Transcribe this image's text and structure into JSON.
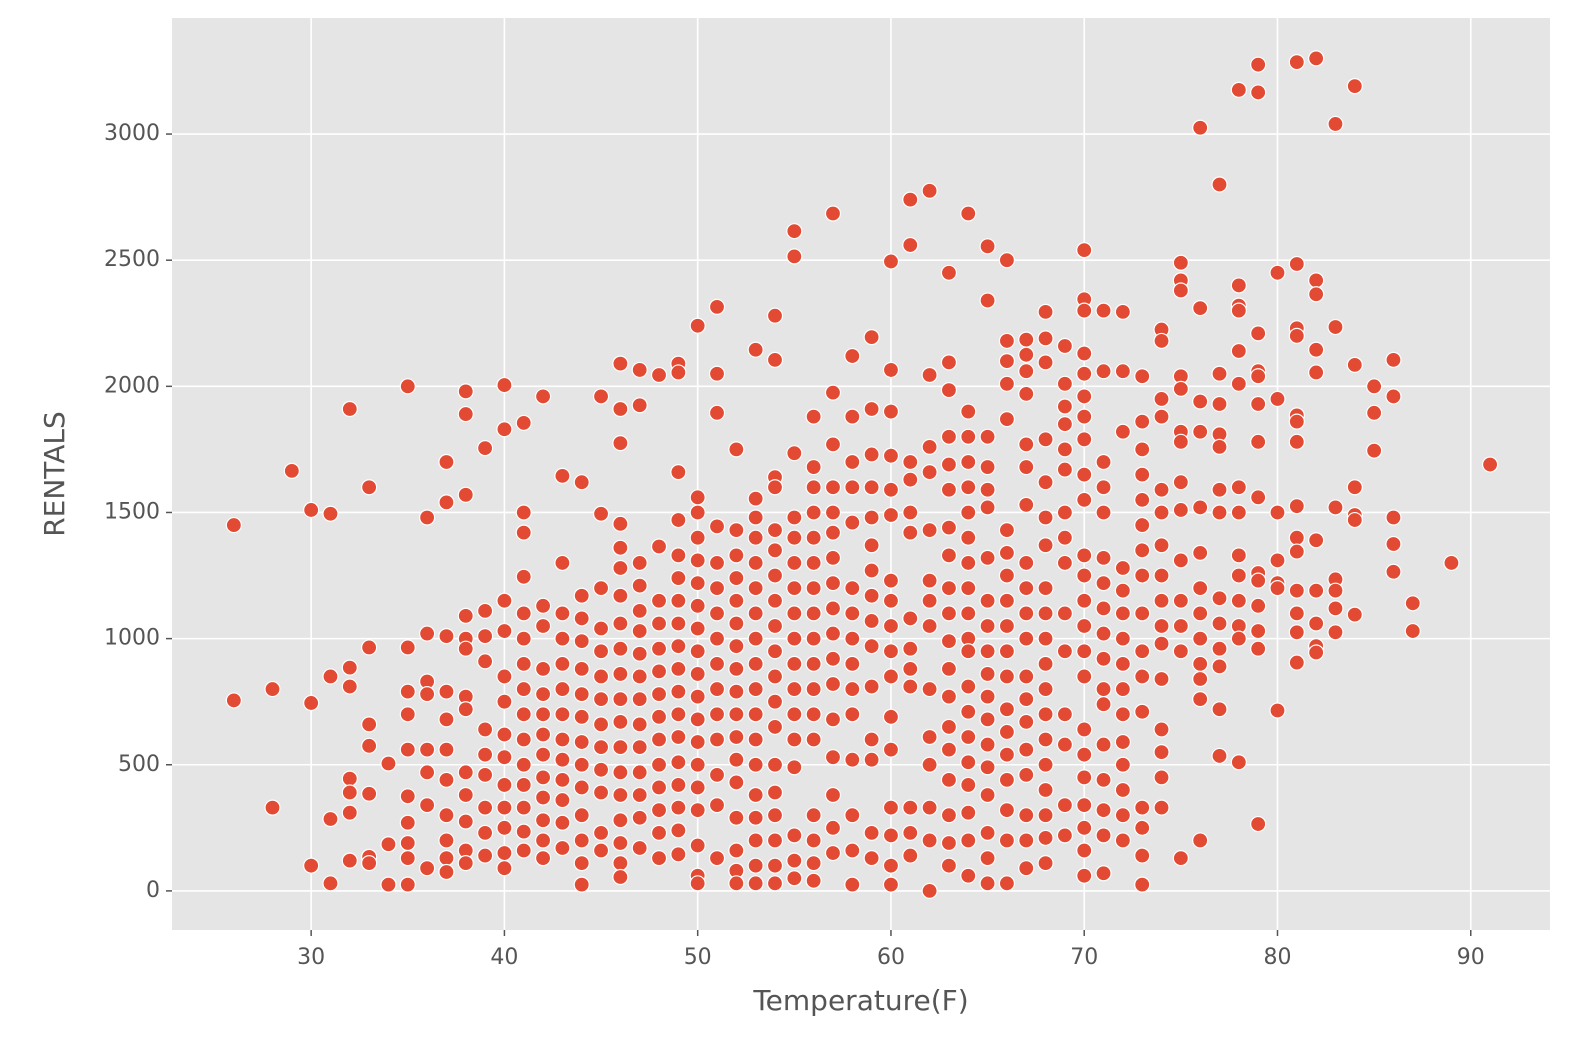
{
  "chart_data": {
    "type": "scatter",
    "x_label": "Temperature(F)",
    "y_label": "RENTALS",
    "color": "#e24a33",
    "grid": true,
    "xlim": [
      22.8,
      94.1
    ],
    "ylim": [
      -155,
      3460
    ],
    "xticks": [
      30,
      40,
      50,
      60,
      70,
      80,
      90
    ],
    "yticks": [
      0,
      500,
      1000,
      1500,
      2000,
      2500,
      3000
    ],
    "x": [
      26,
      26,
      28,
      28,
      29,
      30,
      30,
      30,
      31,
      31,
      31,
      31,
      32,
      32,
      32,
      32,
      32,
      32,
      32,
      33,
      33,
      33,
      33,
      33,
      33,
      33,
      34,
      34,
      34,
      35,
      35,
      35,
      35,
      35,
      35,
      35,
      35,
      35,
      35,
      36,
      36,
      36,
      36,
      36,
      36,
      36,
      36,
      37,
      37,
      37,
      37,
      37,
      37,
      37,
      37,
      37,
      37,
      37,
      38,
      38,
      38,
      38,
      38,
      38,
      38,
      38,
      38,
      38,
      38,
      38,
      38,
      39,
      39,
      39,
      39,
      39,
      39,
      39,
      39,
      39,
      39,
      40,
      40,
      40,
      40,
      40,
      40,
      40,
      40,
      40,
      40,
      40,
      40,
      40,
      41,
      41,
      41,
      41,
      41,
      41,
      41,
      41,
      41,
      41,
      41,
      41,
      41,
      41,
      41,
      42,
      42,
      42,
      42,
      42,
      42,
      42,
      42,
      42,
      42,
      42,
      42,
      42,
      43,
      43,
      43,
      43,
      43,
      43,
      43,
      43,
      43,
      43,
      43,
      43,
      43,
      44,
      44,
      44,
      44,
      44,
      44,
      44,
      44,
      44,
      44,
      44,
      44,
      44,
      44,
      45,
      45,
      45,
      45,
      45,
      45,
      45,
      45,
      45,
      45,
      45,
      45,
      45,
      46,
      46,
      46,
      46,
      46,
      46,
      46,
      46,
      46,
      46,
      46,
      46,
      46,
      46,
      46,
      46,
      46,
      46,
      46,
      47,
      47,
      47,
      47,
      47,
      47,
      47,
      47,
      47,
      47,
      47,
      47,
      47,
      47,
      47,
      48,
      48,
      48,
      48,
      48,
      48,
      48,
      48,
      48,
      48,
      48,
      48,
      48,
      48,
      49,
      49,
      49,
      49,
      49,
      49,
      49,
      49,
      49,
      49,
      49,
      49,
      49,
      49,
      49,
      49,
      49,
      49,
      50,
      50,
      50,
      50,
      50,
      50,
      50,
      50,
      50,
      50,
      50,
      50,
      50,
      50,
      50,
      50,
      50,
      50,
      50,
      51,
      51,
      51,
      51,
      51,
      51,
      51,
      51,
      51,
      51,
      51,
      51,
      51,
      51,
      51,
      52,
      52,
      52,
      52,
      52,
      52,
      52,
      52,
      52,
      52,
      52,
      52,
      52,
      52,
      52,
      52,
      52,
      53,
      53,
      53,
      53,
      53,
      53,
      53,
      53,
      53,
      53,
      53,
      53,
      53,
      53,
      53,
      53,
      53,
      53,
      54,
      54,
      54,
      54,
      54,
      54,
      54,
      54,
      54,
      54,
      54,
      54,
      54,
      54,
      54,
      54,
      54,
      54,
      54,
      55,
      55,
      55,
      55,
      55,
      55,
      55,
      55,
      55,
      55,
      55,
      55,
      55,
      55,
      55,
      55,
      55,
      56,
      56,
      56,
      56,
      56,
      56,
      56,
      56,
      56,
      56,
      56,
      56,
      56,
      56,
      56,
      56,
      56,
      57,
      57,
      57,
      57,
      57,
      57,
      57,
      57,
      57,
      57,
      57,
      57,
      57,
      57,
      57,
      57,
      57,
      58,
      58,
      58,
      58,
      58,
      58,
      58,
      58,
      58,
      58,
      58,
      58,
      58,
      58,
      58,
      59,
      59,
      59,
      59,
      59,
      59,
      59,
      59,
      59,
      59,
      59,
      59,
      59,
      59,
      59,
      60,
      60,
      60,
      60,
      60,
      60,
      60,
      60,
      60,
      60,
      60,
      60,
      60,
      60,
      60,
      60,
      60,
      61,
      61,
      61,
      61,
      61,
      61,
      61,
      61,
      61,
      61,
      61,
      61,
      61,
      62,
      62,
      62,
      62,
      62,
      62,
      62,
      62,
      62,
      62,
      62,
      62,
      62,
      62,
      63,
      63,
      63,
      63,
      63,
      63,
      63,
      63,
      63,
      63,
      63,
      63,
      63,
      63,
      63,
      63,
      63,
      63,
      63,
      64,
      64,
      64,
      64,
      64,
      64,
      64,
      64,
      64,
      64,
      64,
      64,
      64,
      64,
      64,
      64,
      64,
      64,
      64,
      64,
      65,
      65,
      65,
      65,
      65,
      65,
      65,
      65,
      65,
      65,
      65,
      65,
      65,
      65,
      65,
      65,
      65,
      65,
      65,
      66,
      66,
      66,
      66,
      66,
      66,
      66,
      66,
      66,
      66,
      66,
      66,
      66,
      66,
      66,
      66,
      66,
      66,
      66,
      67,
      67,
      67,
      67,
      67,
      67,
      67,
      67,
      67,
      67,
      67,
      67,
      67,
      67,
      67,
      67,
      67,
      67,
      67,
      68,
      68,
      68,
      68,
      68,
      68,
      68,
      68,
      68,
      68,
      68,
      68,
      68,
      68,
      68,
      68,
      68,
      68,
      68,
      69,
      69,
      69,
      69,
      69,
      69,
      69,
      69,
      69,
      69,
      69,
      69,
      69,
      69,
      69,
      70,
      70,
      70,
      70,
      70,
      70,
      70,
      70,
      70,
      70,
      70,
      70,
      70,
      70,
      70,
      70,
      70,
      70,
      70,
      70,
      70,
      70,
      70,
      71,
      71,
      71,
      71,
      71,
      71,
      71,
      71,
      71,
      71,
      71,
      71,
      71,
      71,
      71,
      71,
      71,
      72,
      72,
      72,
      72,
      72,
      72,
      72,
      72,
      72,
      72,
      72,
      72,
      72,
      72,
      72,
      73,
      73,
      73,
      73,
      73,
      73,
      73,
      73,
      73,
      73,
      73,
      73,
      73,
      73,
      73,
      73,
      74,
      74,
      74,
      74,
      74,
      74,
      74,
      74,
      74,
      74,
      74,
      74,
      74,
      74,
      74,
      74,
      75,
      75,
      75,
      75,
      75,
      75,
      75,
      75,
      75,
      75,
      75,
      75,
      75,
      75,
      76,
      76,
      76,
      76,
      76,
      76,
      76,
      76,
      76,
      76,
      76,
      76,
      76,
      77,
      77,
      77,
      77,
      77,
      77,
      77,
      77,
      77,
      77,
      77,
      77,
      77,
      78,
      78,
      78,
      78,
      78,
      78,
      78,
      78,
      78,
      78,
      78,
      78,
      78,
      78,
      79,
      79,
      79,
      79,
      79,
      79,
      79,
      79,
      79,
      79,
      79,
      79,
      79,
      79,
      80,
      80,
      80,
      80,
      80,
      80,
      80,
      81,
      81,
      81,
      81,
      81,
      81,
      81,
      81,
      81,
      81,
      81,
      81,
      81,
      81,
      82,
      82,
      82,
      82,
      82,
      82,
      82,
      82,
      82,
      82,
      83,
      83,
      83,
      83,
      83,
      83,
      83,
      84,
      84,
      84,
      84,
      84,
      84,
      85,
      85,
      85,
      86,
      86,
      86,
      86,
      86,
      87,
      87,
      89,
      91
    ],
    "values": [
      1450,
      755,
      800,
      330,
      1665,
      1510,
      745,
      100,
      1495,
      850,
      285,
      30,
      1910,
      885,
      810,
      445,
      390,
      310,
      120,
      1600,
      965,
      660,
      575,
      385,
      135,
      110,
      505,
      185,
      25,
      2000,
      965,
      790,
      700,
      560,
      375,
      270,
      190,
      130,
      25,
      1480,
      1020,
      830,
      780,
      560,
      470,
      340,
      90,
      1700,
      1540,
      1010,
      790,
      680,
      560,
      440,
      300,
      200,
      130,
      75,
      1980,
      1890,
      1570,
      1090,
      1000,
      960,
      770,
      720,
      470,
      380,
      275,
      160,
      110,
      1755,
      1110,
      1010,
      910,
      640,
      540,
      460,
      330,
      230,
      140,
      2005,
      1830,
      1150,
      1030,
      850,
      750,
      620,
      530,
      420,
      330,
      250,
      150,
      90,
      1855,
      1500,
      1420,
      1245,
      1100,
      1000,
      900,
      800,
      700,
      600,
      500,
      420,
      330,
      235,
      160,
      1960,
      1130,
      1050,
      880,
      780,
      700,
      620,
      540,
      450,
      370,
      280,
      200,
      130,
      1645,
      1300,
      1100,
      1000,
      900,
      800,
      700,
      600,
      520,
      440,
      360,
      270,
      170,
      1620,
      1170,
      1080,
      990,
      880,
      780,
      690,
      590,
      500,
      410,
      300,
      200,
      110,
      25,
      1960,
      1495,
      1200,
      1040,
      950,
      850,
      760,
      660,
      570,
      480,
      390,
      230,
      160,
      2090,
      1910,
      1775,
      1455,
      1360,
      1280,
      1170,
      1060,
      960,
      860,
      760,
      670,
      570,
      470,
      380,
      280,
      190,
      110,
      55,
      2065,
      1925,
      1300,
      1210,
      1110,
      1030,
      940,
      850,
      760,
      660,
      570,
      470,
      380,
      290,
      170,
      2045,
      1365,
      1150,
      1060,
      960,
      870,
      780,
      690,
      600,
      500,
      410,
      320,
      230,
      130,
      2090,
      2055,
      1660,
      1470,
      1330,
      1240,
      1150,
      1060,
      970,
      880,
      790,
      700,
      610,
      510,
      420,
      330,
      240,
      145,
      2240,
      1560,
      1500,
      1400,
      1310,
      1220,
      1130,
      1040,
      950,
      860,
      770,
      680,
      590,
      500,
      410,
      320,
      180,
      60,
      30,
      2315,
      2050,
      1895,
      1445,
      1300,
      1200,
      1100,
      1000,
      900,
      800,
      700,
      600,
      460,
      340,
      130,
      1750,
      1430,
      1330,
      1240,
      1150,
      1060,
      970,
      880,
      790,
      700,
      610,
      520,
      430,
      290,
      160,
      80,
      30,
      2145,
      1555,
      1480,
      1400,
      1300,
      1200,
      1100,
      1000,
      900,
      800,
      700,
      600,
      500,
      380,
      290,
      200,
      100,
      30,
      2280,
      2105,
      1640,
      1600,
      1430,
      1350,
      1250,
      1150,
      1050,
      950,
      850,
      750,
      650,
      500,
      390,
      300,
      200,
      100,
      30,
      2615,
      2515,
      1735,
      1480,
      1400,
      1300,
      1200,
      1100,
      1000,
      900,
      800,
      700,
      600,
      490,
      220,
      120,
      50,
      1880,
      1680,
      1600,
      1500,
      1400,
      1300,
      1200,
      1100,
      1000,
      900,
      800,
      700,
      600,
      300,
      200,
      110,
      40,
      2685,
      1975,
      1770,
      1600,
      1500,
      1420,
      1320,
      1220,
      1120,
      1020,
      920,
      820,
      680,
      530,
      380,
      250,
      150,
      2120,
      1880,
      1700,
      1600,
      1460,
      1200,
      1100,
      1000,
      900,
      800,
      700,
      520,
      300,
      160,
      25,
      2195,
      1910,
      1730,
      1600,
      1480,
      1370,
      1270,
      1170,
      1070,
      970,
      810,
      600,
      520,
      230,
      130,
      2495,
      2065,
      1900,
      1725,
      1590,
      1490,
      1230,
      1150,
      1050,
      950,
      850,
      690,
      560,
      330,
      220,
      100,
      25,
      2740,
      2560,
      1700,
      1630,
      1500,
      1420,
      1080,
      960,
      880,
      810,
      330,
      230,
      140,
      2775,
      2045,
      1760,
      1660,
      1430,
      1230,
      1150,
      1050,
      800,
      610,
      500,
      330,
      200,
      0,
      2450,
      2095,
      1985,
      1800,
      1690,
      1590,
      1440,
      1330,
      1200,
      1100,
      990,
      880,
      770,
      650,
      560,
      440,
      300,
      190,
      100,
      2685,
      1900,
      1800,
      1700,
      1600,
      1500,
      1400,
      1300,
      1200,
      1100,
      1000,
      950,
      810,
      710,
      610,
      510,
      420,
      310,
      200,
      60,
      2555,
      2340,
      1800,
      1680,
      1590,
      1520,
      1320,
      1150,
      1050,
      950,
      860,
      770,
      680,
      580,
      490,
      380,
      230,
      130,
      30,
      2500,
      2180,
      2100,
      2010,
      1870,
      1430,
      1340,
      1250,
      1150,
      1050,
      950,
      850,
      720,
      630,
      540,
      440,
      320,
      200,
      30,
      2185,
      2125,
      2060,
      1970,
      1770,
      1680,
      1530,
      1300,
      1200,
      1100,
      1000,
      850,
      760,
      670,
      560,
      460,
      300,
      200,
      90,
      2295,
      2190,
      2095,
      1790,
      1620,
      1480,
      1370,
      1200,
      1100,
      1000,
      900,
      800,
      700,
      600,
      500,
      400,
      300,
      210,
      110,
      2160,
      2010,
      1920,
      1850,
      1750,
      1670,
      1500,
      1400,
      1300,
      1100,
      950,
      700,
      580,
      340,
      220,
      2540,
      2345,
      2300,
      2130,
      2050,
      1960,
      1880,
      1790,
      1650,
      1550,
      1330,
      1250,
      1150,
      1050,
      950,
      850,
      640,
      540,
      450,
      340,
      250,
      160,
      60,
      2300,
      2060,
      1700,
      1600,
      1500,
      1320,
      1220,
      1120,
      1020,
      920,
      800,
      740,
      580,
      440,
      320,
      220,
      70,
      2295,
      2060,
      1820,
      1280,
      1190,
      1100,
      1000,
      900,
      800,
      700,
      590,
      500,
      400,
      300,
      200,
      2040,
      1860,
      1750,
      1650,
      1550,
      1450,
      1350,
      1250,
      1100,
      950,
      850,
      710,
      330,
      250,
      140,
      25,
      2225,
      2180,
      1950,
      1880,
      1590,
      1500,
      1370,
      1250,
      1150,
      1050,
      980,
      840,
      640,
      550,
      450,
      330,
      2490,
      2420,
      2380,
      2040,
      1990,
      1820,
      1780,
      1620,
      1510,
      1310,
      1150,
      1050,
      950,
      130,
      3025,
      2310,
      1940,
      1820,
      1520,
      1340,
      1200,
      1100,
      1000,
      900,
      840,
      760,
      200,
      2800,
      2050,
      1930,
      1810,
      1760,
      1590,
      1500,
      1160,
      1060,
      960,
      890,
      720,
      535,
      3175,
      2400,
      2320,
      2300,
      2140,
      2010,
      1600,
      1500,
      1330,
      1250,
      1150,
      1050,
      1000,
      510,
      3275,
      3165,
      2210,
      2060,
      2040,
      1930,
      1780,
      1560,
      1260,
      1230,
      1130,
      1030,
      960,
      265,
      2450,
      1950,
      1500,
      1310,
      1220,
      1200,
      715,
      3285,
      2485,
      2230,
      2200,
      1885,
      1860,
      1780,
      1525,
      1400,
      1345,
      1190,
      1100,
      1025,
      905,
      3300,
      2420,
      2365,
      2145,
      2055,
      1390,
      1190,
      1060,
      970,
      945,
      3040,
      2235,
      1520,
      1235,
      1190,
      1120,
      1025,
      3190,
      2085,
      1600,
      1490,
      1470,
      1095,
      2000,
      1895,
      1745,
      2105,
      1960,
      1480,
      1375,
      1265,
      1140,
      1030,
      1300,
      1690
    ]
  }
}
